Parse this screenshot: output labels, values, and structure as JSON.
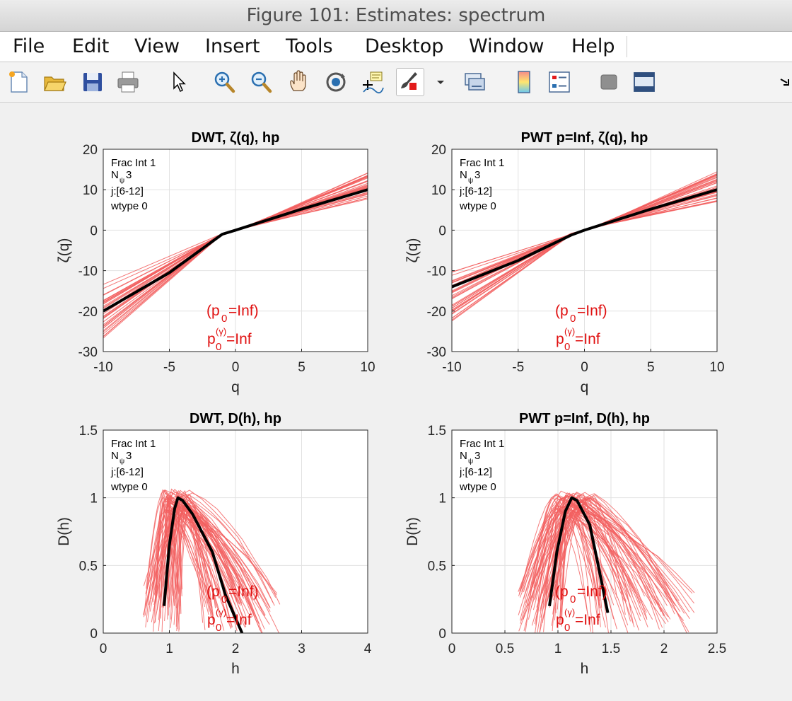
{
  "window": {
    "title": "Figure 101: Estimates: spectrum"
  },
  "menu": [
    "File",
    "Edit",
    "View",
    "Insert",
    "Tools",
    "Desktop",
    "Window",
    "Help"
  ],
  "toolbar": [
    "new-figure-icon",
    "open-file-icon",
    "save-icon",
    "print-icon",
    "pointer-icon",
    "zoom-in-icon",
    "zoom-out-icon",
    "pan-hand-icon",
    "rotate-3d-icon",
    "data-cursor-icon",
    "brush-icon",
    "brush-dropdown-icon",
    "link-plot-icon",
    "colorbar-icon",
    "legend-icon",
    "hide-plot-tools-icon",
    "show-plot-tools-icon",
    "dock-arrow-icon"
  ],
  "colors": {
    "estimate_lines": "#f25f5f",
    "mean_line": "#000000",
    "annotation": "#e01010"
  },
  "chart_data": [
    {
      "type": "line",
      "title": "DWT, ζ(q), hp",
      "xlabel": "q",
      "ylabel": "ζ(q)",
      "xlim": [
        -10,
        10
      ],
      "ylim": [
        -30,
        20
      ],
      "xticks": [
        "-10",
        "-5",
        "0",
        "5",
        "10"
      ],
      "yticks": [
        "-30",
        "-20",
        "-10",
        "0",
        "10",
        "20"
      ],
      "grid": true,
      "info_lines": [
        "Frac Int 1",
        "N",
        "ψ",
        "3",
        "j:[6-12]",
        "wtype 0"
      ],
      "annotation": {
        "line1_open": "(p",
        "line1_sub": "0",
        "line1_close": "=Inf)",
        "line2_p": "p",
        "line2_sub": "0",
        "line2_sup": "(γ)",
        "line2_close": "=Inf"
      },
      "mean_series": {
        "x": [
          -10,
          -5,
          -1,
          0,
          5,
          10
        ],
        "y": [
          -20,
          -10.5,
          -1.0,
          0,
          5.2,
          10
        ]
      },
      "estimate_envelope": {
        "x_left": -10,
        "y_left_range": [
          -28,
          -13
        ],
        "x_right": 10,
        "y_right_range": [
          7,
          14.5
        ],
        "pivot": [
          -1,
          -1
        ],
        "pivot2": [
          1,
          1
        ]
      }
    },
    {
      "type": "line",
      "title": "PWT p=Inf, ζ(q), hp",
      "xlabel": "q",
      "ylabel": "ζ(q)",
      "xlim": [
        -10,
        10
      ],
      "ylim": [
        -30,
        20
      ],
      "xticks": [
        "-10",
        "-5",
        "0",
        "5",
        "10"
      ],
      "yticks": [
        "-30",
        "-20",
        "-10",
        "0",
        "10",
        "20"
      ],
      "grid": true,
      "info_lines": [
        "Frac Int 1",
        "N",
        "ψ",
        "3",
        "j:[6-12]",
        "wtype 0"
      ],
      "annotation": {
        "line1_open": "(p",
        "line1_sub": "0",
        "line1_close": "=Inf)",
        "line2_p": "p",
        "line2_sub": "0",
        "line2_sup": "(γ)",
        "line2_close": "=Inf"
      },
      "mean_series": {
        "x": [
          -10,
          -5,
          -1,
          0,
          5,
          10
        ],
        "y": [
          -14,
          -7.5,
          -1.2,
          0,
          5.2,
          10
        ]
      },
      "estimate_envelope": {
        "x_left": -10,
        "y_left_range": [
          -23,
          -10
        ],
        "x_right": 10,
        "y_right_range": [
          7,
          14.5
        ],
        "pivot": [
          -1,
          -1
        ],
        "pivot2": [
          1,
          1
        ]
      }
    },
    {
      "type": "line",
      "title": "DWT, D(h), hp",
      "xlabel": "h",
      "ylabel": "D(h)",
      "xlim": [
        0,
        4
      ],
      "ylim": [
        0,
        1.5
      ],
      "xticks": [
        "0",
        "1",
        "2",
        "3",
        "4"
      ],
      "yticks": [
        "0",
        "0.5",
        "1",
        "1.5"
      ],
      "grid": true,
      "info_lines": [
        "Frac Int 1",
        "N",
        "ψ",
        "3",
        "j:[6-12]",
        "wtype 0"
      ],
      "annotation": {
        "line1_open": "(p",
        "line1_sub": "0",
        "line1_close": "=Inf)",
        "line2_p": "p",
        "line2_sub": "0",
        "line2_sup": "(γ)",
        "line2_close": "=Inf"
      },
      "mean_series": {
        "x": [
          0.92,
          1.0,
          1.08,
          1.13,
          1.2,
          1.35,
          1.65,
          1.85,
          2.1
        ],
        "y": [
          0.2,
          0.65,
          0.92,
          1.0,
          0.98,
          0.88,
          0.6,
          0.28,
          0.0
        ]
      },
      "estimate_spread": {
        "peak_x": [
          0.9,
          1.35
        ],
        "peak_y": [
          0.9,
          1.07
        ],
        "left_end_x": [
          0.6,
          1.2
        ],
        "right_end_x": [
          1.5,
          2.7
        ]
      }
    },
    {
      "type": "line",
      "title": "PWT p=Inf, D(h), hp",
      "xlabel": "h",
      "ylabel": "D(h)",
      "xlim": [
        0,
        2.5
      ],
      "ylim": [
        0,
        1.5
      ],
      "xticks": [
        "0",
        "0.5",
        "1",
        "1.5",
        "2",
        "2.5"
      ],
      "yticks": [
        "0",
        "0.5",
        "1",
        "1.5"
      ],
      "grid": true,
      "info_lines": [
        "Frac Int 1",
        "N",
        "ψ",
        "3",
        "j:[6-12]",
        "wtype 0"
      ],
      "annotation": {
        "line1_open": "(p",
        "line1_sub": "0",
        "line1_close": "=Inf)",
        "line2_p": "p",
        "line2_sub": "0",
        "line2_sup": "(γ)",
        "line2_close": "=Inf"
      },
      "mean_series": {
        "x": [
          0.92,
          0.99,
          1.07,
          1.13,
          1.18,
          1.3,
          1.38,
          1.47
        ],
        "y": [
          0.2,
          0.6,
          0.9,
          1.0,
          0.98,
          0.8,
          0.5,
          0.15
        ]
      },
      "estimate_spread": {
        "peak_x": [
          0.95,
          1.35
        ],
        "peak_y": [
          0.9,
          1.05
        ],
        "left_end_x": [
          0.62,
          1.05
        ],
        "right_end_x": [
          1.25,
          2.3
        ]
      }
    }
  ]
}
